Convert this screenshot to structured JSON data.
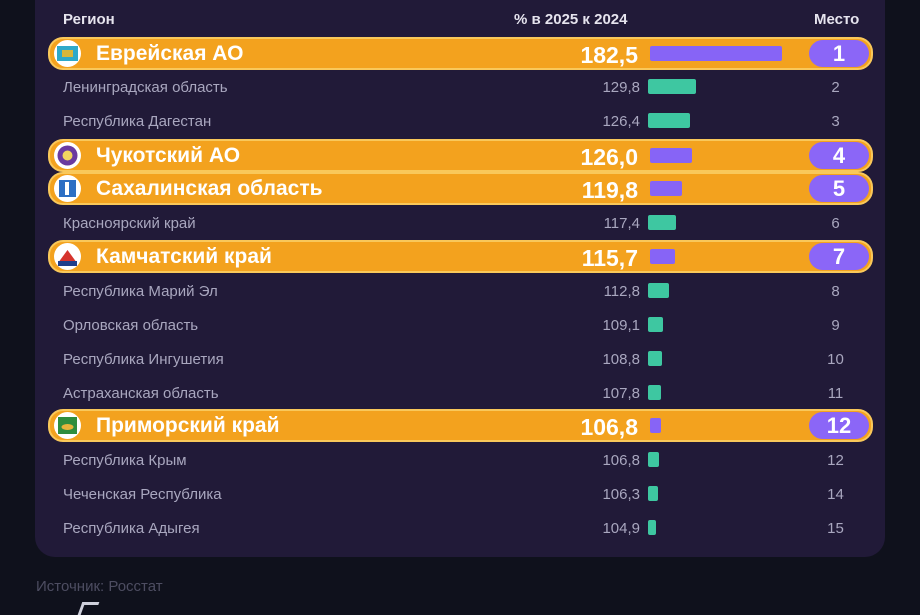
{
  "header": {
    "region": "Регион",
    "percent": "% в 2025 к 2024",
    "place": "Место"
  },
  "chart_data": {
    "type": "bar",
    "orientation": "horizontal",
    "xlabel": "% в 2025 к 2024",
    "rows": [
      {
        "region": "Еврейская АО",
        "value": 182.5,
        "value_label": "182,5",
        "rank": "1",
        "highlight": true,
        "emblem": "jewish-ao-emblem"
      },
      {
        "region": "Ленинградская область",
        "value": 129.8,
        "value_label": "129,8",
        "rank": "2",
        "highlight": false
      },
      {
        "region": "Республика Дагестан",
        "value": 126.4,
        "value_label": "126,4",
        "rank": "3",
        "highlight": false
      },
      {
        "region": "Чукотский АО",
        "value": 126.0,
        "value_label": "126,0",
        "rank": "4",
        "highlight": true,
        "emblem": "chukotka-emblem"
      },
      {
        "region": "Сахалинская область",
        "value": 119.8,
        "value_label": "119,8",
        "rank": "5",
        "highlight": true,
        "emblem": "sakhalin-emblem"
      },
      {
        "region": "Красноярский край",
        "value": 117.4,
        "value_label": "117,4",
        "rank": "6",
        "highlight": false
      },
      {
        "region": "Камчатский край",
        "value": 115.7,
        "value_label": "115,7",
        "rank": "7",
        "highlight": true,
        "emblem": "kamchatka-emblem"
      },
      {
        "region": "Республика Марий Эл",
        "value": 112.8,
        "value_label": "112,8",
        "rank": "8",
        "highlight": false
      },
      {
        "region": "Орловская область",
        "value": 109.1,
        "value_label": "109,1",
        "rank": "9",
        "highlight": false
      },
      {
        "region": "Республика Ингушетия",
        "value": 108.8,
        "value_label": "108,8",
        "rank": "10",
        "highlight": false
      },
      {
        "region": "Астраханская область",
        "value": 107.8,
        "value_label": "107,8",
        "rank": "11",
        "highlight": false
      },
      {
        "region": "Приморский край",
        "value": 106.8,
        "value_label": "106,8",
        "rank": "12",
        "highlight": true,
        "emblem": "primorye-emblem"
      },
      {
        "region": "Республика Крым",
        "value": 106.8,
        "value_label": "106,8",
        "rank": "12",
        "highlight": false
      },
      {
        "region": "Чеченская Республика",
        "value": 106.3,
        "value_label": "106,3",
        "rank": "14",
        "highlight": false
      },
      {
        "region": "Республика Адыгея",
        "value": 104.9,
        "value_label": "104,9",
        "rank": "15",
        "highlight": false
      }
    ],
    "colors": {
      "highlight_row": "#f3a21e",
      "highlight_bar": "#8764f6",
      "plain_bar": "#3ec7a1",
      "background": "#211a38"
    }
  },
  "footer": {
    "source": "Источник: Росстат"
  }
}
